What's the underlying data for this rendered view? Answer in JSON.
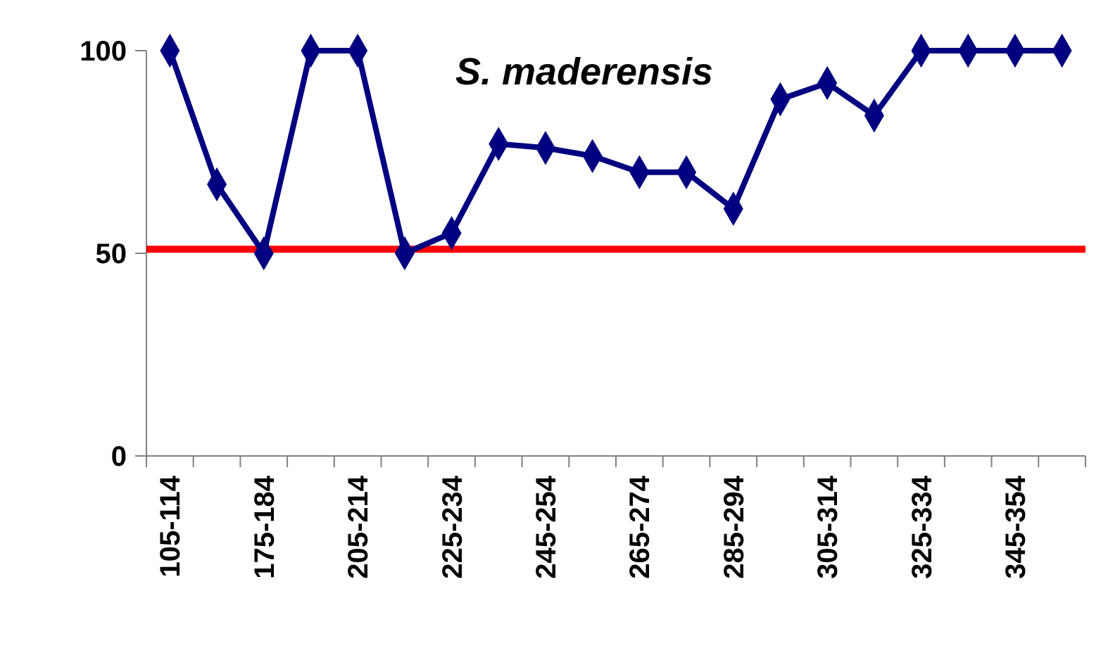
{
  "chart_data": {
    "type": "line",
    "title": "S. maderensis",
    "categories": [
      "105-114",
      null,
      "175-184",
      null,
      "205-214",
      null,
      "225-234",
      null,
      "245-254",
      null,
      "265-274",
      null,
      "285-294",
      null,
      "305-314",
      null,
      "325-334",
      null,
      "345-354",
      null
    ],
    "series": [
      {
        "color": "#000080",
        "values": [
          100,
          67,
          50,
          100,
          100,
          50,
          55,
          77,
          76,
          74,
          70,
          70,
          61,
          88,
          92,
          84,
          100,
          100,
          100,
          100
        ]
      }
    ],
    "ylim": [
      0,
      100
    ],
    "yticks": [
      0,
      50,
      100
    ],
    "grid": false,
    "marker": "diamond",
    "line_style": "solid",
    "ref_lines": [
      {
        "axis": "y",
        "value": 51,
        "color": "#ff0000"
      }
    ]
  }
}
